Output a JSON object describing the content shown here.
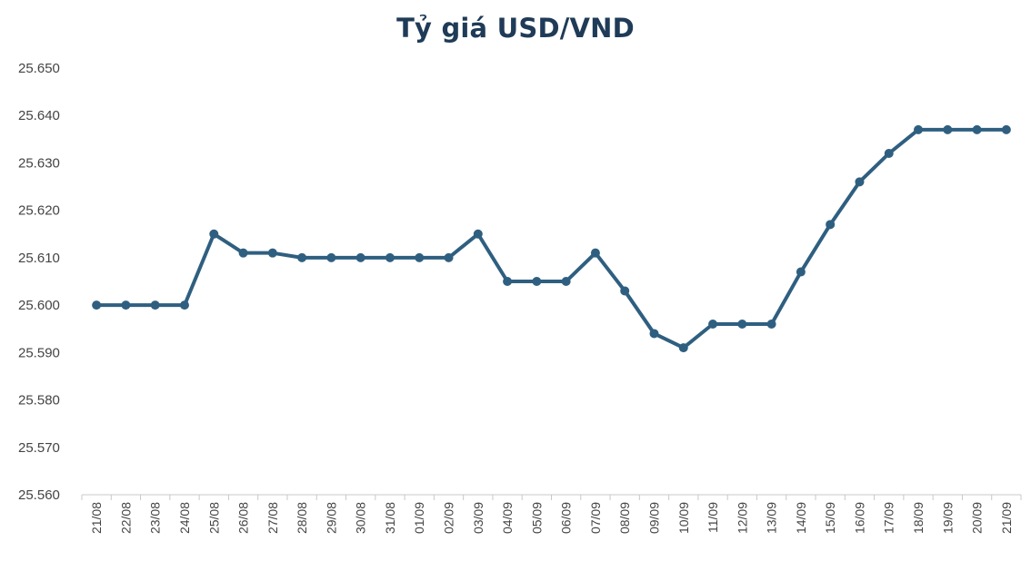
{
  "chart_data": {
    "type": "line",
    "title": "Tỷ giá USD/VND",
    "xlabel": "",
    "ylabel": "",
    "categories": [
      "21/08",
      "22/08",
      "23/08",
      "24/08",
      "25/08",
      "26/08",
      "27/08",
      "28/08",
      "29/08",
      "30/08",
      "31/08",
      "01/09",
      "02/09",
      "03/09",
      "04/09",
      "05/09",
      "06/09",
      "07/09",
      "08/09",
      "09/09",
      "10/09",
      "11/09",
      "12/09",
      "13/09",
      "14/09",
      "15/09",
      "16/09",
      "17/09",
      "18/09",
      "19/09",
      "20/09",
      "21/09"
    ],
    "series": [
      {
        "values": [
          25600,
          25600,
          25600,
          25600,
          25615,
          25611,
          25611,
          25610,
          25610,
          25610,
          25610,
          25610,
          25610,
          25615,
          25605,
          25605,
          25605,
          25611,
          25603,
          25594,
          25591,
          25596,
          25596,
          25596,
          25607,
          25617,
          25626,
          25632,
          25637,
          25637,
          25637,
          25637
        ],
        "color": "#2f5f80"
      }
    ],
    "ylim": [
      25560,
      25650
    ],
    "ytick_labels": [
      "25.560",
      "25.570",
      "25.580",
      "25.590",
      "25.600",
      "25.610",
      "25.620",
      "25.630",
      "25.640",
      "25.650"
    ],
    "grid": false,
    "legend": "none",
    "axis_color": "#c8c8c8"
  }
}
